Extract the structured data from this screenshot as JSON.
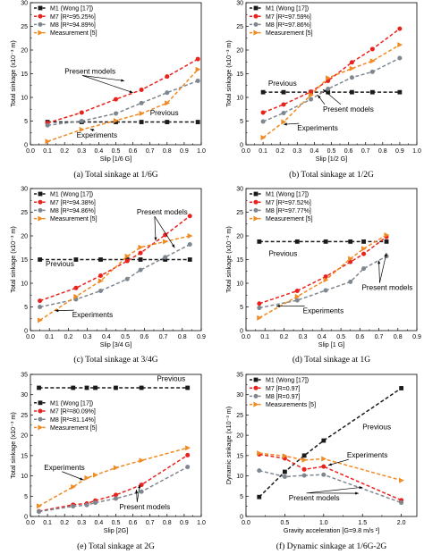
{
  "legend_labels": {
    "m1": "M1 (Wong [17])",
    "m7": "M7 [R²=…]",
    "m8": "M8 [R²=…]",
    "meas": "Measurement [5]"
  },
  "series_colors": {
    "M1": "#1a1a1a",
    "M7": "#e8231d",
    "M8": "#7e8790",
    "Measurement": "#f08a22"
  },
  "chart_data": [
    {
      "type": "line",
      "panel": "a",
      "caption": "(a) Total sinkage at 1/6G",
      "xlabel": "Slip [1/6 G]",
      "ylabel": "Total sinkage (x10⁻³ m)",
      "xlim": [
        0.0,
        1.0
      ],
      "ylim": [
        0,
        30
      ],
      "xticks": [
        0.0,
        0.1,
        0.2,
        0.3,
        0.4,
        0.5,
        0.6,
        0.7,
        0.8,
        0.9,
        1.0
      ],
      "yticks": [
        0,
        5,
        10,
        15,
        20,
        25,
        30
      ],
      "legend_position": "top-left",
      "legend": [
        "M1 (Wong [17])",
        "M7 [R²=95.25%]",
        "M8 [R²=94.89%]",
        "Measurement [5]"
      ],
      "series": [
        {
          "name": "M1 (Wong [17])",
          "marker": "square",
          "x": [
            0.1,
            0.3,
            0.5,
            0.65,
            0.8,
            0.98
          ],
          "y": [
            4.8,
            4.8,
            4.8,
            4.8,
            4.8,
            4.8
          ]
        },
        {
          "name": "M7 [R²=95.25%]",
          "marker": "circle",
          "x": [
            0.1,
            0.3,
            0.5,
            0.65,
            0.8,
            0.98
          ],
          "y": [
            4.6,
            6.8,
            9.6,
            11.6,
            14.4,
            18.1
          ]
        },
        {
          "name": "M8 [R²=94.89%]",
          "marker": "circle",
          "x": [
            0.1,
            0.3,
            0.5,
            0.65,
            0.8,
            0.98
          ],
          "y": [
            4.1,
            5.0,
            6.6,
            8.8,
            11.0,
            13.5
          ]
        },
        {
          "name": "Measurement [5]",
          "marker": "triangle-right",
          "x": [
            0.1,
            0.3,
            0.5,
            0.65,
            0.8,
            0.98
          ],
          "y": [
            0.7,
            3.2,
            5.1,
            6.6,
            8.8,
            15.9
          ]
        }
      ],
      "annotations": [
        {
          "text": "Present models",
          "x": 0.2,
          "y": 15.0,
          "arrows": [
            [
              0.55,
              13.5
            ],
            [
              0.6,
              11.0
            ]
          ]
        },
        {
          "text": "Previous",
          "x": 0.7,
          "y": 6.2
        },
        {
          "text": "Experiments",
          "x": 0.27,
          "y": 1.5,
          "arrows": [
            [
              0.35,
              3.3
            ]
          ]
        }
      ]
    },
    {
      "type": "line",
      "panel": "b",
      "caption": "(b) Total sinkage at 1/2G",
      "xlabel": "Slip [1/2 G]",
      "ylabel": "Total sinkage (x10⁻³ m)",
      "xlim": [
        0.0,
        1.0
      ],
      "ylim": [
        0,
        30
      ],
      "xticks": [
        0.0,
        0.1,
        0.2,
        0.3,
        0.4,
        0.5,
        0.6,
        0.7,
        0.8,
        0.9,
        1.0
      ],
      "yticks": [
        0,
        5,
        10,
        15,
        20,
        25,
        30
      ],
      "legend_position": "top-left",
      "legend": [
        "M1 (Wong [17])",
        "M7 [R²=97.59%]",
        "M8 [R²=97.86%]",
        "Measurement [5]"
      ],
      "series": [
        {
          "name": "M1 (Wong [17])",
          "marker": "square",
          "x": [
            0.1,
            0.22,
            0.38,
            0.48,
            0.62,
            0.74,
            0.9
          ],
          "y": [
            11.1,
            11.1,
            11.1,
            11.1,
            11.1,
            11.1,
            11.1
          ]
        },
        {
          "name": "M7 [R²=97.59%]",
          "marker": "circle",
          "x": [
            0.1,
            0.22,
            0.38,
            0.48,
            0.62,
            0.74,
            0.9
          ],
          "y": [
            6.8,
            8.5,
            11.2,
            13.5,
            17.4,
            20.2,
            24.5
          ]
        },
        {
          "name": "M8 [R²=97.86%]",
          "marker": "circle",
          "x": [
            0.1,
            0.22,
            0.38,
            0.48,
            0.62,
            0.74,
            0.9
          ],
          "y": [
            4.9,
            6.7,
            9.6,
            11.8,
            14.2,
            15.4,
            18.3
          ]
        },
        {
          "name": "Measurement [5]",
          "marker": "triangle-right",
          "x": [
            0.1,
            0.22,
            0.38,
            0.48,
            0.62,
            0.74,
            0.9
          ],
          "y": [
            1.5,
            4.8,
            10.5,
            14.1,
            16.1,
            17.7,
            21.1
          ]
        }
      ],
      "annotations": [
        {
          "text": "Present models",
          "x": 0.45,
          "y": 7.0,
          "arrows": [
            [
              0.42,
              10.5
            ],
            [
              0.45,
              11.7
            ]
          ]
        },
        {
          "text": "Previous",
          "x": 0.13,
          "y": 12.5
        },
        {
          "text": "Experiments",
          "x": 0.3,
          "y": 3.0,
          "arrows": [
            [
              0.22,
              4.3
            ]
          ]
        }
      ]
    },
    {
      "type": "line",
      "panel": "c",
      "caption": "(c) Total sinkage at 3/4G",
      "xlabel": "Slip [3/4 G]",
      "ylabel": "Total sinkage (x10⁻³ m)",
      "xlim": [
        0.0,
        0.9
      ],
      "ylim": [
        0,
        30
      ],
      "xticks": [
        0.0,
        0.1,
        0.2,
        0.3,
        0.4,
        0.5,
        0.6,
        0.7,
        0.8,
        0.9
      ],
      "yticks": [
        0,
        5,
        10,
        15,
        20,
        25,
        30
      ],
      "legend_position": "top-left",
      "legend": [
        "M1 (Wong [17])",
        "M7 [R²=94.38%]",
        "M8 [R²=94.86%]",
        "Measurement [5]"
      ],
      "series": [
        {
          "name": "M1 (Wong [17])",
          "marker": "square",
          "x": [
            0.05,
            0.24,
            0.37,
            0.51,
            0.58,
            0.71,
            0.84
          ],
          "y": [
            15.0,
            15.0,
            15.0,
            15.0,
            15.0,
            15.0,
            15.0
          ]
        },
        {
          "name": "M7 [R²=94.38%]",
          "marker": "circle",
          "x": [
            0.05,
            0.24,
            0.37,
            0.51,
            0.58,
            0.71,
            0.84
          ],
          "y": [
            6.3,
            9.0,
            11.6,
            14.7,
            16.4,
            20.2,
            24.2
          ]
        },
        {
          "name": "M8 [R²=94.86%]",
          "marker": "circle",
          "x": [
            0.05,
            0.24,
            0.37,
            0.51,
            0.58,
            0.71,
            0.84
          ],
          "y": [
            5.0,
            6.6,
            8.4,
            10.9,
            12.8,
            15.5,
            18.2
          ]
        },
        {
          "name": "Measurement [5]",
          "marker": "triangle-right",
          "x": [
            0.05,
            0.24,
            0.37,
            0.51,
            0.58,
            0.71,
            0.84
          ],
          "y": [
            2.2,
            7.2,
            10.5,
            15.7,
            17.6,
            18.8,
            20.0
          ]
        }
      ],
      "annotations": [
        {
          "text": "Present models",
          "x": 0.56,
          "y": 24.5,
          "arrows": [
            [
              0.66,
              19.0
            ],
            [
              0.76,
              17.5
            ]
          ]
        },
        {
          "text": "Previous",
          "x": 0.08,
          "y": 13.6
        },
        {
          "text": "Experiments",
          "x": 0.22,
          "y": 2.8,
          "arrows": [
            [
              0.13,
              4.2
            ]
          ]
        }
      ]
    },
    {
      "type": "line",
      "panel": "d",
      "caption": "(d) Total sinkage at 1G",
      "xlabel": "Slip [1 G]",
      "ylabel": "Total sinkage (x10⁻³ m)",
      "xlim": [
        0.0,
        0.9
      ],
      "ylim": [
        0,
        30
      ],
      "xticks": [
        0.0,
        0.1,
        0.2,
        0.3,
        0.4,
        0.5,
        0.6,
        0.7,
        0.8,
        0.9
      ],
      "yticks": [
        0,
        5,
        10,
        15,
        20,
        25,
        30
      ],
      "legend_position": "top-left",
      "legend": [
        "M1 (Wong [17])",
        "M7 [R²=97.52%]",
        "M8 [R²=97.77%]",
        "Measurement [5]"
      ],
      "series": [
        {
          "name": "M1 (Wong [17])",
          "marker": "square",
          "x": [
            0.07,
            0.27,
            0.42,
            0.55,
            0.62,
            0.74
          ],
          "y": [
            18.8,
            18.8,
            18.8,
            18.8,
            18.8,
            18.8
          ]
        },
        {
          "name": "M7 [R²=97.52%]",
          "marker": "circle",
          "x": [
            0.07,
            0.27,
            0.42,
            0.55,
            0.62,
            0.74
          ],
          "y": [
            5.7,
            8.4,
            11.4,
            14.5,
            16.2,
            19.8
          ]
        },
        {
          "name": "M8 [R²=97.77%]",
          "marker": "circle",
          "x": [
            0.07,
            0.27,
            0.42,
            0.55,
            0.62,
            0.74
          ],
          "y": [
            4.8,
            6.4,
            8.5,
            10.3,
            13.1,
            15.7
          ]
        },
        {
          "name": "Measurement [5]",
          "marker": "triangle-right",
          "x": [
            0.07,
            0.27,
            0.42,
            0.55,
            0.62,
            0.74
          ],
          "y": [
            2.7,
            7.2,
            10.7,
            15.2,
            17.3,
            20.2
          ]
        }
      ],
      "annotations": [
        {
          "text": "Present models",
          "x": 0.61,
          "y": 8.6,
          "arrows": [
            [
              0.7,
              14.8
            ],
            [
              0.74,
              16.4
            ]
          ]
        },
        {
          "text": "Previous",
          "x": 0.12,
          "y": 15.8
        },
        {
          "text": "Experiments",
          "x": 0.3,
          "y": 3.7,
          "arrows": [
            [
              0.16,
              5.2
            ]
          ]
        }
      ]
    },
    {
      "type": "line",
      "panel": "e",
      "caption": "(e) Total sinkage at 2G",
      "xlabel": "Slip [2G]",
      "ylabel": "Total sinkage (x10⁻³ m)",
      "xlim": [
        0.0,
        1.0
      ],
      "ylim": [
        0,
        35
      ],
      "xticks": [
        0.0,
        0.1,
        0.2,
        0.3,
        0.4,
        0.5,
        0.6,
        0.7,
        0.8,
        0.9,
        1.0
      ],
      "yticks": [
        0,
        5,
        10,
        15,
        20,
        25,
        30,
        35
      ],
      "legend_position": "center-left",
      "legend": [
        "M1 (Wong [17])",
        "M7 [R²=80.09%]",
        "M8 [R²=81.14%]",
        "Measurement [5]"
      ],
      "series": [
        {
          "name": "M1 (Wong [17])",
          "marker": "square",
          "x": [
            0.05,
            0.25,
            0.33,
            0.38,
            0.5,
            0.65,
            0.92
          ],
          "y": [
            31.7,
            31.7,
            31.7,
            31.7,
            31.7,
            31.7,
            31.7
          ]
        },
        {
          "name": "M7 [R²=80.09%]",
          "marker": "circle",
          "x": [
            0.05,
            0.25,
            0.33,
            0.38,
            0.5,
            0.65,
            0.92
          ],
          "y": [
            1.3,
            2.9,
            3.2,
            3.9,
            5.3,
            7.8,
            15.1
          ]
        },
        {
          "name": "M8 [R²=81.14%]",
          "marker": "circle",
          "x": [
            0.05,
            0.25,
            0.33,
            0.38,
            0.5,
            0.65,
            0.92
          ],
          "y": [
            1.2,
            2.5,
            2.8,
            3.4,
            4.4,
            6.1,
            12.2
          ]
        },
        {
          "name": "Measurement [5]",
          "marker": "triangle-right",
          "x": [
            0.05,
            0.25,
            0.33,
            0.38,
            0.5,
            0.65,
            0.92
          ],
          "y": [
            2.6,
            7.3,
            9.5,
            10.2,
            12.0,
            13.8,
            16.9
          ]
        }
      ],
      "annotations": [
        {
          "text": "Present models",
          "x": 0.52,
          "y": 1.8,
          "arrows": [
            [
              0.62,
              6.6
            ],
            [
              0.64,
              7.8
            ]
          ]
        },
        {
          "text": "Previous",
          "x": 0.74,
          "y": 33.4
        },
        {
          "text": "Experiments",
          "x": 0.08,
          "y": 11.5,
          "arrows": [
            [
              0.31,
              9.0
            ]
          ]
        }
      ]
    },
    {
      "type": "line",
      "panel": "f",
      "caption": "(f) Dynamic sinkage at 1/6G-2G",
      "xlabel": "Gravity acceleration [G=9.8 m/s ²]",
      "ylabel": "Dynamic sinkage (x10⁻³ m)",
      "xlim": [
        0.0,
        2.2
      ],
      "ylim": [
        0,
        35
      ],
      "xticks": [
        0.0,
        0.5,
        1.0,
        1.5,
        2.0
      ],
      "yticks": [
        0,
        5,
        10,
        15,
        20,
        25,
        30,
        35
      ],
      "legend_position": "top-left",
      "legend": [
        "M1 (Wong [17])",
        "M7 [R=0.97]",
        "M8 [R=0.97]",
        "Measurements [5]"
      ],
      "series": [
        {
          "name": "M1 (Wong [17])",
          "marker": "square",
          "x": [
            0.17,
            0.5,
            0.75,
            1.0,
            2.0
          ],
          "y": [
            4.8,
            11.0,
            15.0,
            18.7,
            31.6
          ]
        },
        {
          "name": "M7 [R=0.97]",
          "marker": "circle",
          "x": [
            0.17,
            0.5,
            0.75,
            1.0,
            2.0
          ],
          "y": [
            15.3,
            14.3,
            11.6,
            12.3,
            4.0
          ]
        },
        {
          "name": "M8 [R=0.97]",
          "marker": "circle",
          "x": [
            0.17,
            0.5,
            0.75,
            1.0,
            2.0
          ],
          "y": [
            11.3,
            9.8,
            10.1,
            10.3,
            3.4
          ]
        },
        {
          "name": "Measurements [5]",
          "marker": "triangle-right",
          "x": [
            0.17,
            0.5,
            0.75,
            1.0,
            2.0
          ],
          "y": [
            15.6,
            14.9,
            13.9,
            14.2,
            8.9
          ]
        }
      ],
      "annotations": [
        {
          "text": "Previous",
          "x": 1.5,
          "y": 21.5
        },
        {
          "text": "Experiments",
          "x": 1.3,
          "y": 14.5,
          "arrows": [
            [
              1.06,
              12.6
            ]
          ]
        },
        {
          "text": "Present models",
          "x": 0.55,
          "y": 4.0,
          "arrows": [
            [
              1.45,
              5.7
            ],
            [
              1.5,
              7.2
            ]
          ]
        }
      ]
    }
  ]
}
